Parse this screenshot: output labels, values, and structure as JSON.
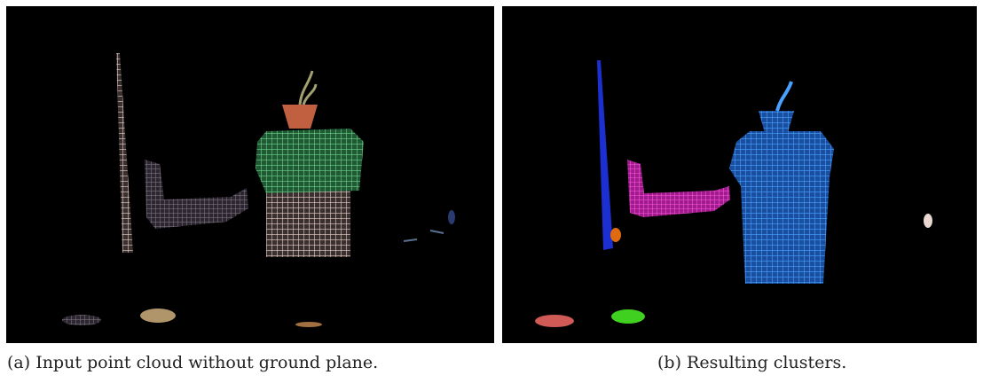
{
  "figure": {
    "panels": [
      {
        "caption": "(a) Input point cloud without ground plane."
      },
      {
        "caption": "(b) Resulting clusters."
      }
    ]
  }
}
